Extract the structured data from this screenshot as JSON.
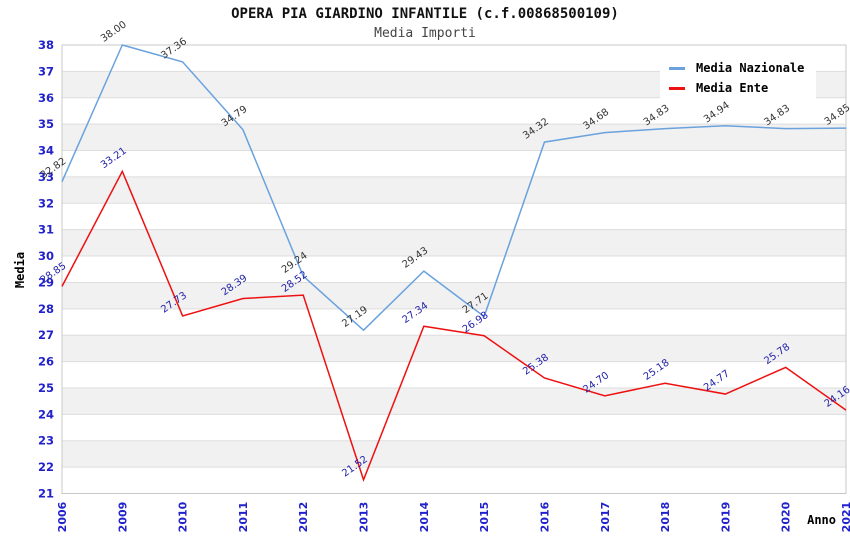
{
  "chart_data": {
    "type": "line",
    "title": "OPERA PIA GIARDINO INFANTILE (c.f.00868500109)",
    "subtitle": "Media Importi",
    "xlabel": "Anno",
    "ylabel": "Media",
    "categories": [
      "2006",
      "2009",
      "2010",
      "2011",
      "2012",
      "2013",
      "2014",
      "2015",
      "2016",
      "2017",
      "2018",
      "2019",
      "2020",
      "2021"
    ],
    "series": [
      {
        "name": "Media Nazionale",
        "color": "#6AA2DE",
        "label_color": "#333333",
        "values": [
          32.82,
          38.0,
          37.36,
          34.79,
          29.24,
          27.19,
          29.43,
          27.71,
          34.32,
          34.68,
          34.83,
          34.94,
          34.83,
          34.85
        ]
      },
      {
        "name": "Media Ente",
        "color": "#EE1111",
        "label_color": "#2222AA",
        "values": [
          28.85,
          33.21,
          27.73,
          28.39,
          28.52,
          21.52,
          27.34,
          26.98,
          25.38,
          24.7,
          25.18,
          24.77,
          25.78,
          24.16
        ]
      }
    ],
    "ylim": [
      21,
      38
    ],
    "ytick_step": 1,
    "grid": "horizontal",
    "background_bands": true,
    "legend_position": "top-right",
    "axis_tick_color": "#2222CC",
    "band_color": "#F1F1F1",
    "gridline_color": "#DDDDDD",
    "plot_border_color": "#C9C9C9",
    "value_label_decimals": 2
  }
}
